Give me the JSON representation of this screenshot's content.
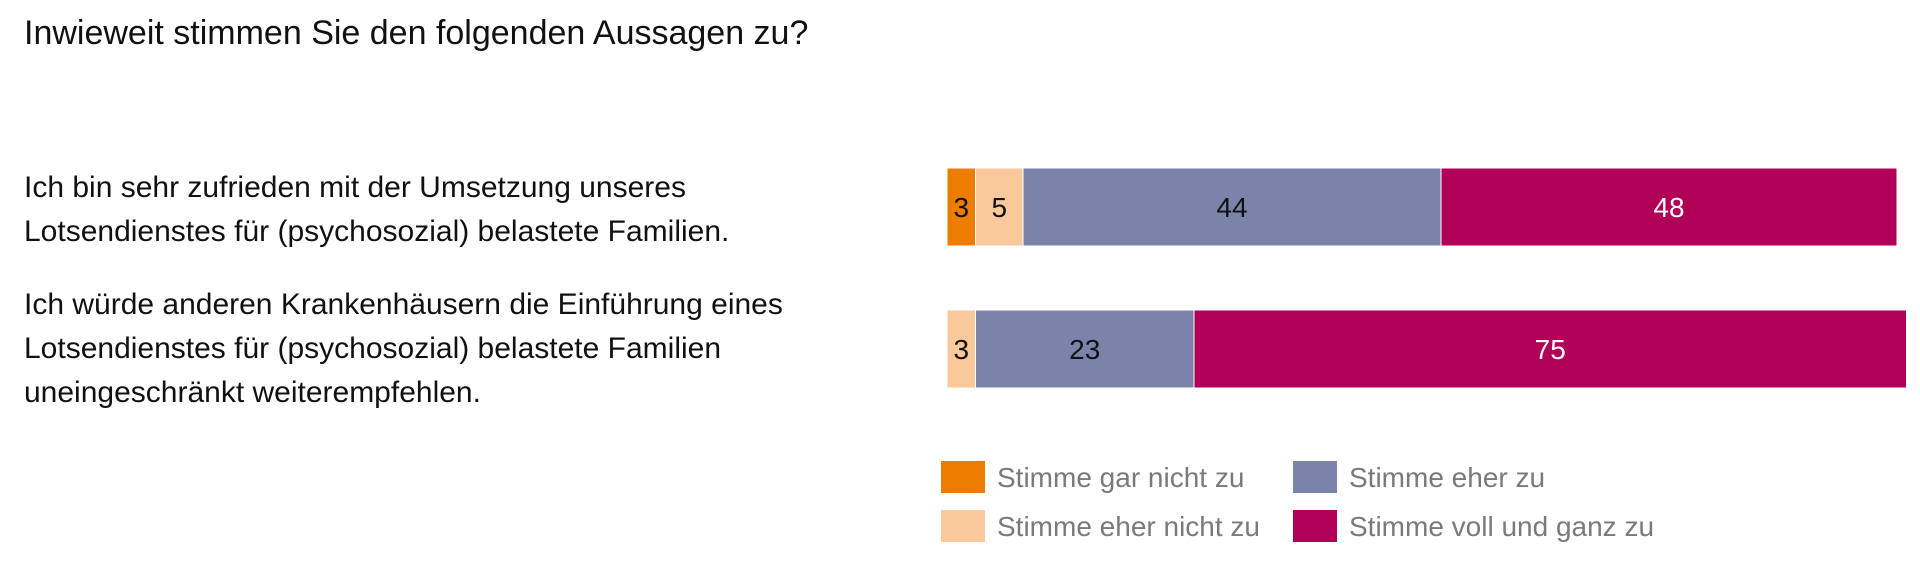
{
  "chart_data": {
    "type": "bar",
    "orientation": "horizontal",
    "stacked": true,
    "title": "Inwieweit stimmen Sie den folgenden Aussagen zu?",
    "categories": [
      "Ich bin sehr zufrieden mit der Umsetzung unseres\nLotsendienstes für (psychosozial) belastete Familien.",
      "Ich würde anderen Krankenhäusern die Einführung eines\nLotsendienstes für (psychosozial) belastete Familien\nuneingeschränkt weiterempfehlen."
    ],
    "series": [
      {
        "name": "Stimme gar nicht zu",
        "color": "#ED7D00",
        "values": [
          3,
          0
        ],
        "labels": [
          "3",
          ""
        ]
      },
      {
        "name": "Stimme eher nicht zu",
        "color": "#F9C89B",
        "values": [
          5,
          3
        ],
        "labels": [
          "5",
          "3"
        ]
      },
      {
        "name": "Stimme eher zu",
        "color": "#7A84AB",
        "values": [
          44,
          23
        ],
        "labels": [
          "44",
          "23"
        ]
      },
      {
        "name": "Stimme voll und ganz zu",
        "color": "#B00058",
        "values": [
          48,
          75
        ],
        "labels": [
          "48",
          "75"
        ]
      }
    ],
    "xlim": [
      0,
      100
    ],
    "grid": false,
    "legend_position": "bottom"
  }
}
